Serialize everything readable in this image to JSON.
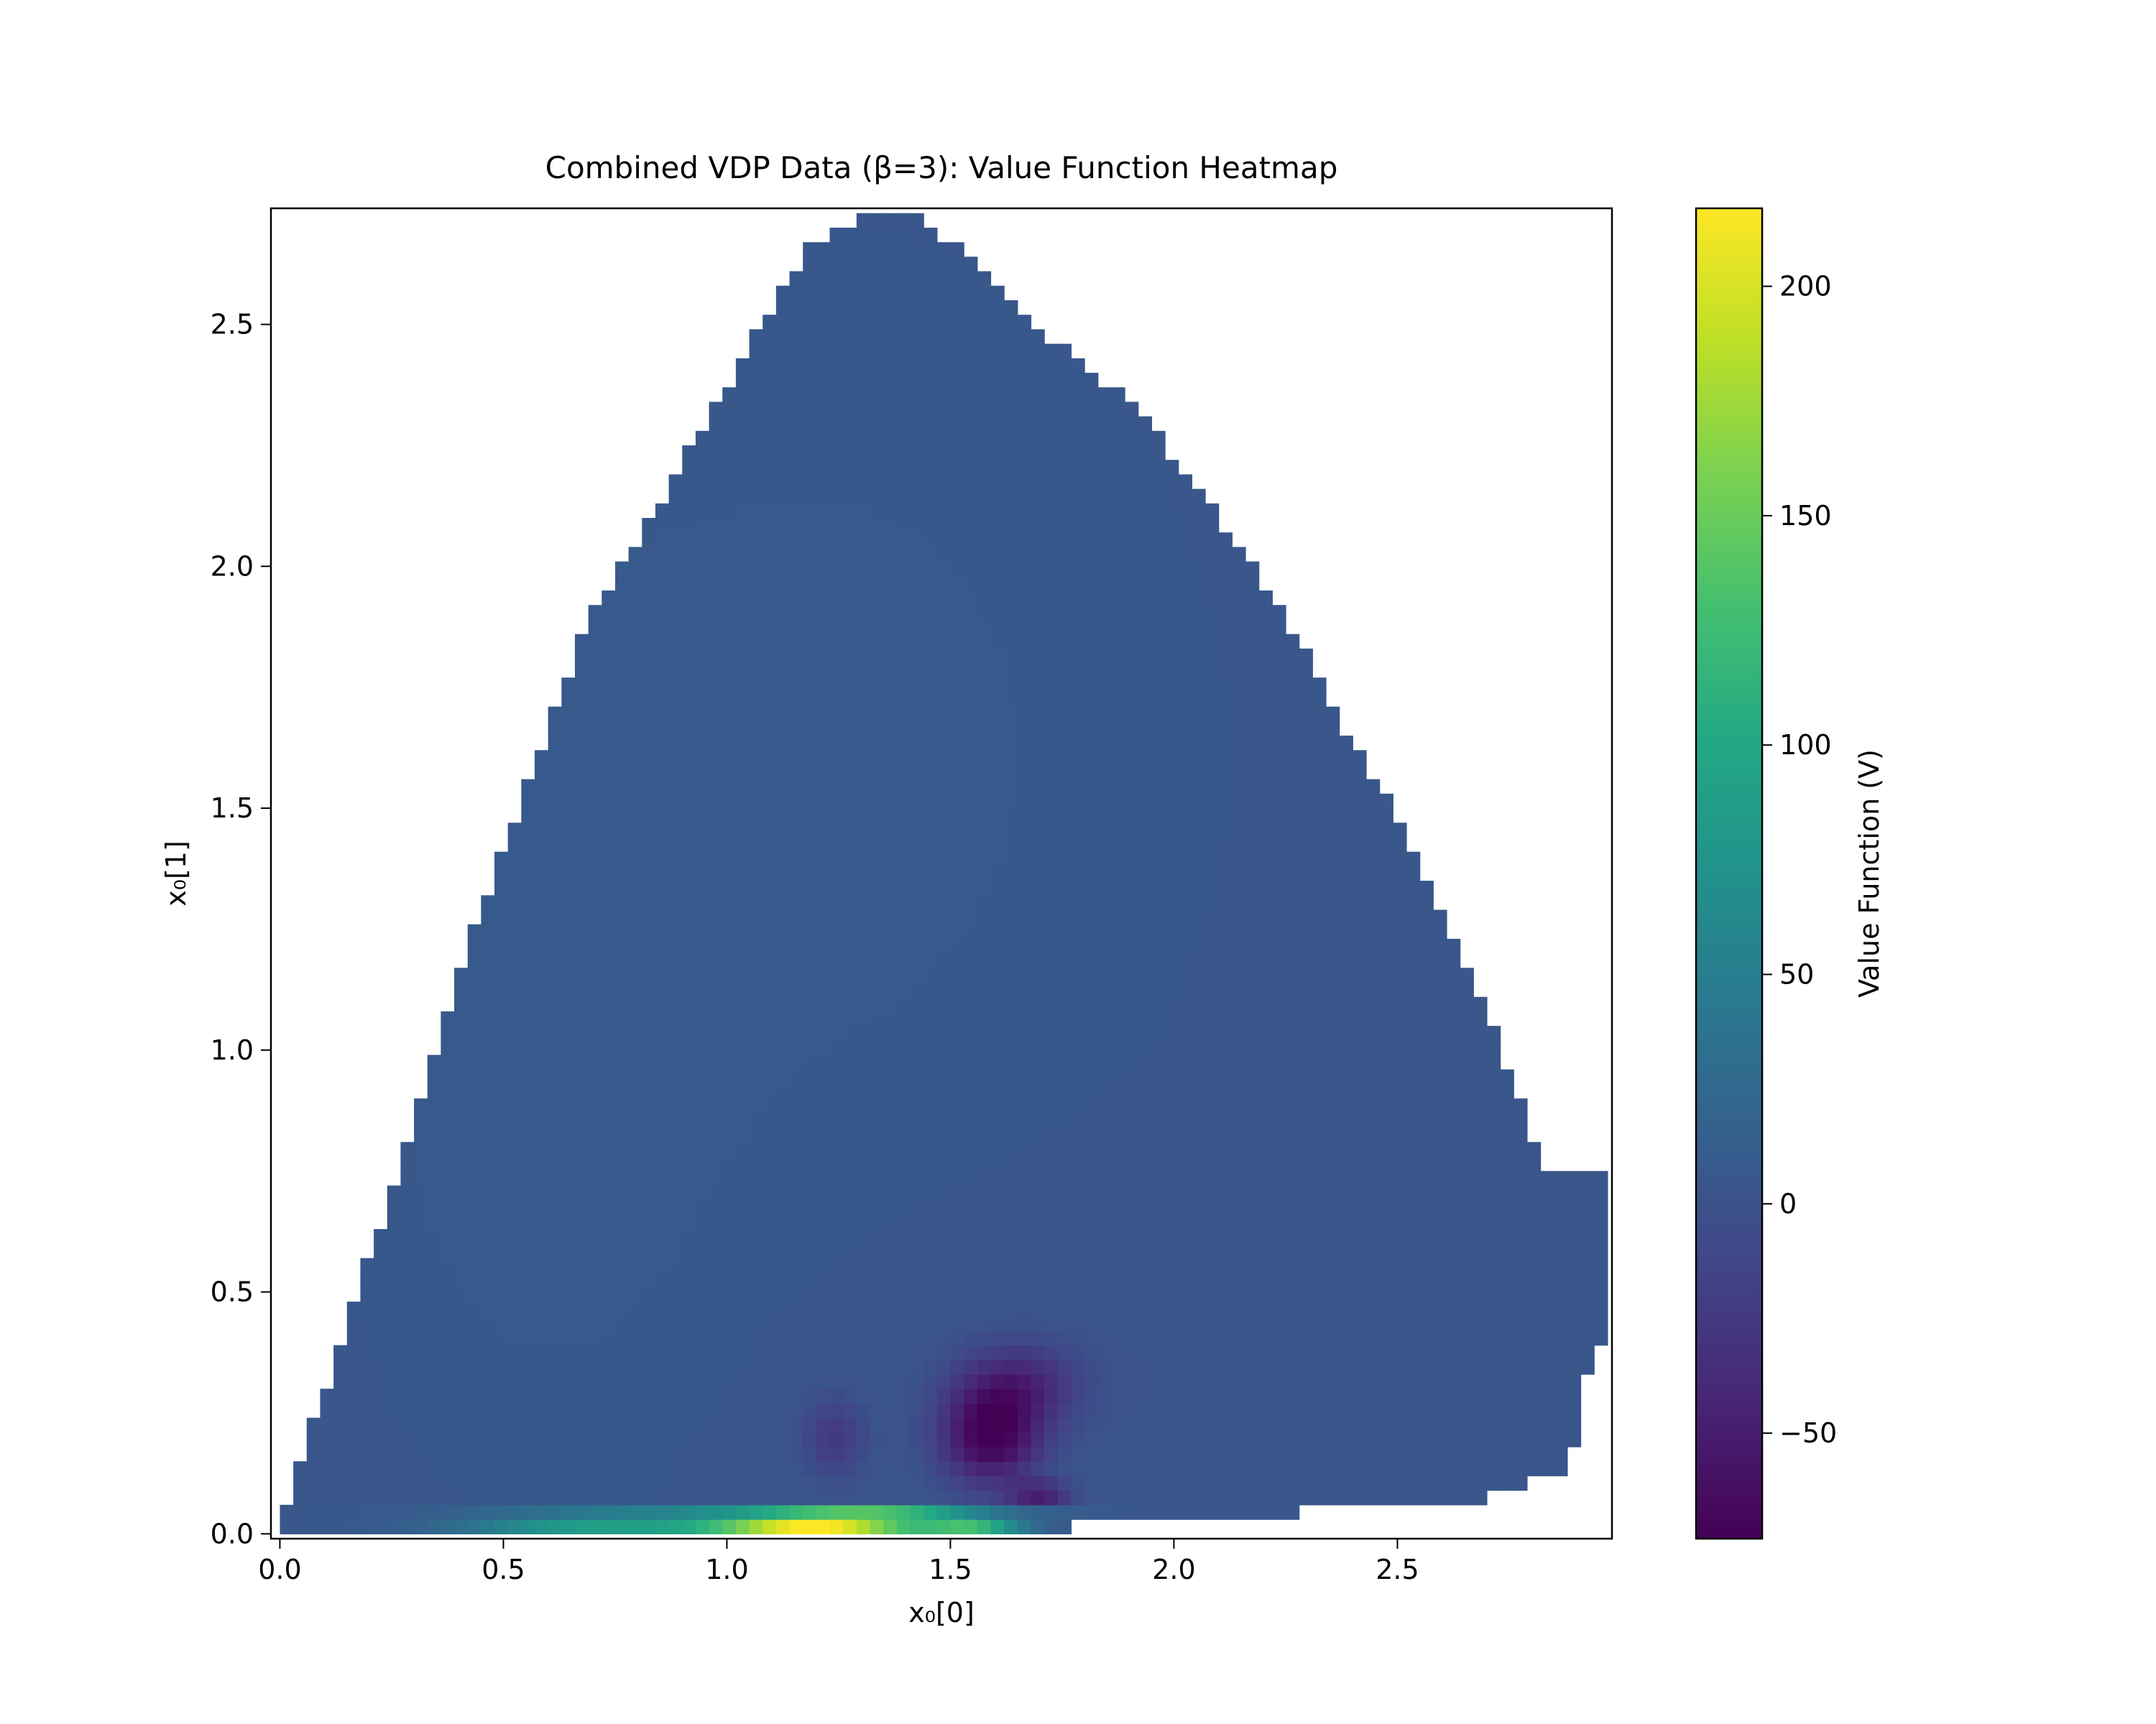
{
  "chart_data": {
    "type": "heatmap",
    "title": "Combined VDP Data (β=3): Value Function Heatmap",
    "xlabel": "x₀[0]",
    "ylabel": "x₀[1]",
    "xlim": [
      -0.02,
      2.98
    ],
    "ylim": [
      -0.01,
      2.74
    ],
    "xticks": [
      0.0,
      0.5,
      1.0,
      1.5,
      2.0,
      2.5
    ],
    "xtick_labels": [
      "0.0",
      "0.5",
      "1.0",
      "1.5",
      "2.0",
      "2.5"
    ],
    "yticks": [
      0.0,
      0.5,
      1.0,
      1.5,
      2.0,
      2.5
    ],
    "ytick_labels": [
      "0.0",
      "0.5",
      "1.0",
      "1.5",
      "2.0",
      "2.5"
    ],
    "grid": false,
    "colormap": "viridis",
    "colorbar": {
      "label": "Value Function (V)",
      "range": [
        -73,
        217
      ],
      "ticks": [
        -50,
        0,
        50,
        100,
        150,
        200
      ],
      "tick_labels": [
        "−50",
        "0",
        "50",
        "100",
        "150",
        "200"
      ]
    },
    "cell_size": 0.03,
    "background_value": 5,
    "region_boundary": {
      "left_edge": [
        [
          0.0,
          0.0
        ],
        [
          0.03,
          0.1
        ],
        [
          0.06,
          0.18
        ],
        [
          0.09,
          0.27
        ],
        [
          0.12,
          0.35
        ],
        [
          0.15,
          0.44
        ],
        [
          0.18,
          0.52
        ],
        [
          0.21,
          0.6
        ],
        [
          0.24,
          0.68
        ],
        [
          0.27,
          0.77
        ],
        [
          0.3,
          0.85
        ],
        [
          0.33,
          0.93
        ],
        [
          0.36,
          1.03
        ],
        [
          0.39,
          1.12
        ],
        [
          0.42,
          1.2
        ],
        [
          0.45,
          1.29
        ],
        [
          0.48,
          1.36
        ],
        [
          0.51,
          1.43
        ],
        [
          0.54,
          1.5
        ],
        [
          0.57,
          1.59
        ],
        [
          0.6,
          1.67
        ],
        [
          0.63,
          1.73
        ],
        [
          0.66,
          1.8
        ],
        [
          0.69,
          1.89
        ],
        [
          0.72,
          1.93
        ],
        [
          0.75,
          1.98
        ],
        [
          0.78,
          2.03
        ],
        [
          0.81,
          2.08
        ],
        [
          0.84,
          2.11
        ],
        [
          0.87,
          2.16
        ],
        [
          0.9,
          2.22
        ],
        [
          0.93,
          2.27
        ],
        [
          0.96,
          2.3
        ],
        [
          0.99,
          2.35
        ],
        [
          1.02,
          2.41
        ],
        [
          1.05,
          2.47
        ],
        [
          1.08,
          2.51
        ],
        [
          1.11,
          2.55
        ],
        [
          1.14,
          2.59
        ],
        [
          1.17,
          2.64
        ],
        [
          1.2,
          2.67
        ],
        [
          1.23,
          2.69
        ],
        [
          1.29,
          2.72
        ],
        [
          1.41,
          2.72
        ]
      ],
      "right_edge": [
        [
          1.44,
          2.72
        ],
        [
          1.47,
          2.69
        ],
        [
          1.5,
          2.67
        ],
        [
          1.53,
          2.64
        ],
        [
          1.56,
          2.62
        ],
        [
          1.59,
          2.59
        ],
        [
          1.62,
          2.57
        ],
        [
          1.65,
          2.54
        ],
        [
          1.68,
          2.51
        ],
        [
          1.71,
          2.48
        ],
        [
          1.77,
          2.45
        ],
        [
          1.8,
          2.42
        ],
        [
          1.83,
          2.39
        ],
        [
          1.86,
          2.37
        ],
        [
          1.89,
          2.34
        ],
        [
          1.92,
          2.31
        ],
        [
          1.95,
          2.28
        ],
        [
          1.98,
          2.25
        ],
        [
          2.01,
          2.2
        ],
        [
          2.04,
          2.17
        ],
        [
          2.07,
          2.14
        ],
        [
          2.1,
          2.11
        ],
        [
          2.13,
          2.06
        ],
        [
          2.16,
          2.03
        ],
        [
          2.19,
          1.98
        ],
        [
          2.22,
          1.93
        ],
        [
          2.25,
          1.89
        ],
        [
          2.28,
          1.84
        ],
        [
          2.31,
          1.79
        ],
        [
          2.34,
          1.74
        ],
        [
          2.37,
          1.69
        ],
        [
          2.4,
          1.64
        ],
        [
          2.43,
          1.59
        ],
        [
          2.46,
          1.54
        ],
        [
          2.49,
          1.49
        ],
        [
          2.52,
          1.43
        ],
        [
          2.55,
          1.37
        ],
        [
          2.58,
          1.31
        ],
        [
          2.61,
          1.25
        ],
        [
          2.64,
          1.2
        ],
        [
          2.67,
          1.13
        ],
        [
          2.7,
          1.07
        ],
        [
          2.73,
          1.0
        ],
        [
          2.76,
          0.93
        ],
        [
          2.79,
          0.87
        ],
        [
          2.82,
          0.75
        ],
        [
          2.85,
          0.75
        ],
        [
          2.88,
          0.75
        ],
        [
          2.91,
          0.75
        ]
      ],
      "bottom_steps": [
        [
          2.94,
          0.4
        ],
        [
          2.91,
          0.26
        ],
        [
          2.88,
          0.13
        ],
        [
          2.79,
          0.1
        ],
        [
          2.67,
          0.07
        ],
        [
          2.31,
          0.07
        ],
        [
          2.28,
          0.04
        ],
        [
          1.65,
          0.01
        ],
        [
          0.0,
          0.01
        ]
      ]
    },
    "features": [
      {
        "name": "low-V pocket main",
        "x": 1.59,
        "y": 0.2,
        "value": -72
      },
      {
        "name": "low-V pocket upper",
        "x": 1.62,
        "y": 0.32,
        "value": -45
      },
      {
        "name": "low-V pocket side",
        "x": 1.24,
        "y": 0.2,
        "value": -30
      },
      {
        "name": "low-V streak",
        "x": 1.7,
        "y": 0.085,
        "value": -65
      },
      {
        "name": "high-V strip bottom",
        "x": 1.2,
        "y": 0.02,
        "value": 217
      },
      {
        "name": "high-V strip second row",
        "x": 1.3,
        "y": 0.055,
        "value": 120
      }
    ]
  }
}
